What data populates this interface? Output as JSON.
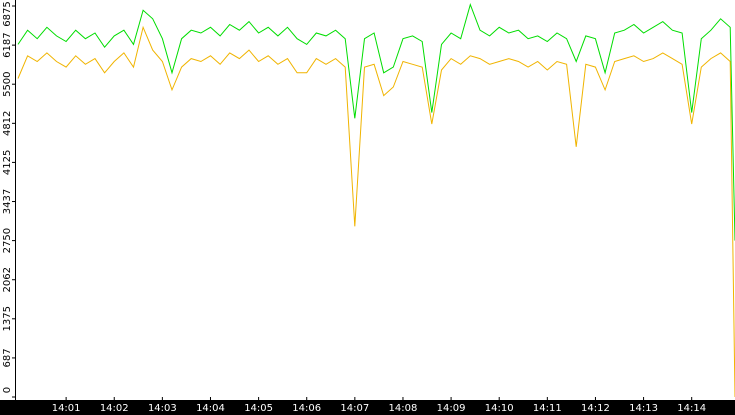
{
  "chart_data": {
    "type": "line",
    "x": [
      0,
      0.2,
      0.4,
      0.6,
      0.8,
      1,
      1.2,
      1.4,
      1.6,
      1.8,
      2,
      2.2,
      2.4,
      2.6,
      2.8,
      3,
      3.2,
      3.4,
      3.6,
      3.8,
      4,
      4.2,
      4.4,
      4.6,
      4.8,
      5,
      5.2,
      5.4,
      5.6,
      5.8,
      6,
      6.2,
      6.4,
      6.6,
      6.8,
      7,
      7.2,
      7.4,
      7.6,
      7.8,
      8,
      8.2,
      8.4,
      8.6,
      8.8,
      9,
      9.2,
      9.4,
      9.6,
      9.8,
      10,
      10.2,
      10.4,
      10.6,
      10.8,
      11,
      11.2,
      11.4,
      11.6,
      11.8,
      12,
      12.2,
      12.4,
      12.6,
      12.8,
      13,
      13.2,
      13.4,
      13.6,
      13.8,
      14,
      14.2,
      14.4,
      14.6,
      14.8,
      14.9
    ],
    "series": [
      {
        "color": "#00dd00",
        "values": [
          6200,
          6450,
          6300,
          6500,
          6350,
          6250,
          6450,
          6300,
          6400,
          6150,
          6350,
          6450,
          6200,
          6800,
          6650,
          6300,
          5700,
          6300,
          6450,
          6400,
          6500,
          6350,
          6550,
          6450,
          6600,
          6400,
          6500,
          6350,
          6500,
          6300,
          6200,
          6400,
          6350,
          6450,
          6300,
          4900,
          6300,
          6400,
          5700,
          5800,
          6300,
          6350,
          6250,
          5000,
          6200,
          6400,
          6300,
          6900,
          6450,
          6350,
          6500,
          6400,
          6450,
          6300,
          6350,
          6250,
          6400,
          6300,
          5900,
          6350,
          6300,
          5700,
          6400,
          6450,
          6550,
          6400,
          6500,
          6600,
          6450,
          6400,
          5000,
          6300,
          6450,
          6650,
          6500,
          2750
        ]
      },
      {
        "color": "#f0b400",
        "values": [
          5600,
          6000,
          5900,
          6050,
          5900,
          5800,
          6000,
          5850,
          5950,
          5700,
          5900,
          6050,
          5800,
          6500,
          6100,
          5900,
          5400,
          5800,
          5950,
          5900,
          6000,
          5850,
          6050,
          5950,
          6100,
          5900,
          6000,
          5850,
          5950,
          5700,
          5700,
          5950,
          5850,
          5950,
          5800,
          3000,
          5800,
          5850,
          5300,
          5450,
          5900,
          5850,
          5800,
          4800,
          5750,
          5950,
          5850,
          6000,
          5950,
          5850,
          5900,
          5950,
          5900,
          5800,
          5900,
          5750,
          5900,
          5850,
          4400,
          5850,
          5800,
          5400,
          5900,
          5950,
          6000,
          5900,
          5950,
          6050,
          5950,
          5850,
          4800,
          5800,
          5950,
          6050,
          5900,
          0
        ]
      }
    ],
    "xlim": [
      0,
      14.9
    ],
    "xticks": [
      {
        "value": 1,
        "label": "14:01"
      },
      {
        "value": 2,
        "label": "14:02"
      },
      {
        "value": 3,
        "label": "14:03"
      },
      {
        "value": 4,
        "label": "14:04"
      },
      {
        "value": 5,
        "label": "14:05"
      },
      {
        "value": 6,
        "label": "14:06"
      },
      {
        "value": 7,
        "label": "14:07"
      },
      {
        "value": 8,
        "label": "14:08"
      },
      {
        "value": 9,
        "label": "14:09"
      },
      {
        "value": 10,
        "label": "14:10"
      },
      {
        "value": 11,
        "label": "14:11"
      },
      {
        "value": 12,
        "label": "14:12"
      },
      {
        "value": 13,
        "label": "14:13"
      },
      {
        "value": 14,
        "label": "14:14"
      }
    ],
    "ylim": [
      0,
      6875
    ],
    "yticks": [
      0,
      687,
      1375,
      2062,
      2750,
      3437,
      4125,
      4812,
      5500,
      6187,
      6875
    ]
  }
}
